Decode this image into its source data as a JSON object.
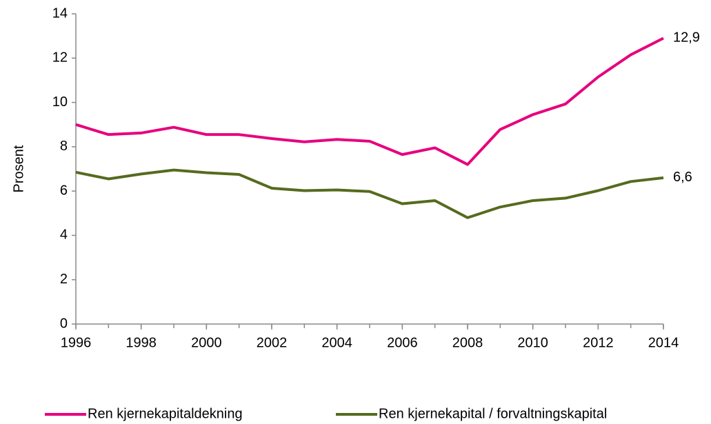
{
  "chart_data": {
    "type": "line",
    "ylabel": "Prosent",
    "x": [
      1996,
      1997,
      1998,
      1999,
      2000,
      2001,
      2002,
      2003,
      2004,
      2005,
      2006,
      2007,
      2008,
      2009,
      2010,
      2011,
      2012,
      2013,
      2014
    ],
    "series": [
      {
        "name": "Ren kjernekapitaldekning",
        "color": "#e6007e",
        "values": [
          9.0,
          8.55,
          8.62,
          8.88,
          8.55,
          8.55,
          8.37,
          8.22,
          8.33,
          8.25,
          7.65,
          7.95,
          7.2,
          8.78,
          9.45,
          9.93,
          11.15,
          12.15,
          12.9
        ],
        "value_labels": [
          null,
          null,
          null,
          null,
          null,
          null,
          null,
          null,
          null,
          null,
          null,
          null,
          null,
          null,
          null,
          null,
          null,
          null,
          "12,9"
        ]
      },
      {
        "name": "Ren kjernekapital / forvaltningskapital",
        "color": "#556b1e",
        "values": [
          6.85,
          6.55,
          6.77,
          6.95,
          6.83,
          6.75,
          6.13,
          6.02,
          6.05,
          5.98,
          5.43,
          5.57,
          4.8,
          5.28,
          5.57,
          5.68,
          6.02,
          6.43,
          6.6
        ],
        "value_labels": [
          null,
          null,
          null,
          null,
          null,
          null,
          null,
          null,
          null,
          null,
          null,
          null,
          null,
          null,
          null,
          null,
          null,
          null,
          "6,6"
        ]
      }
    ],
    "xlim": [
      1996,
      2014
    ],
    "xticks": [
      1996,
      1998,
      2000,
      2002,
      2004,
      2006,
      2008,
      2010,
      2012,
      2014
    ],
    "ylim": [
      0,
      14
    ],
    "yticks": [
      0,
      2,
      4,
      6,
      8,
      10,
      12,
      14
    ],
    "grid": false,
    "legend": "bottom"
  }
}
